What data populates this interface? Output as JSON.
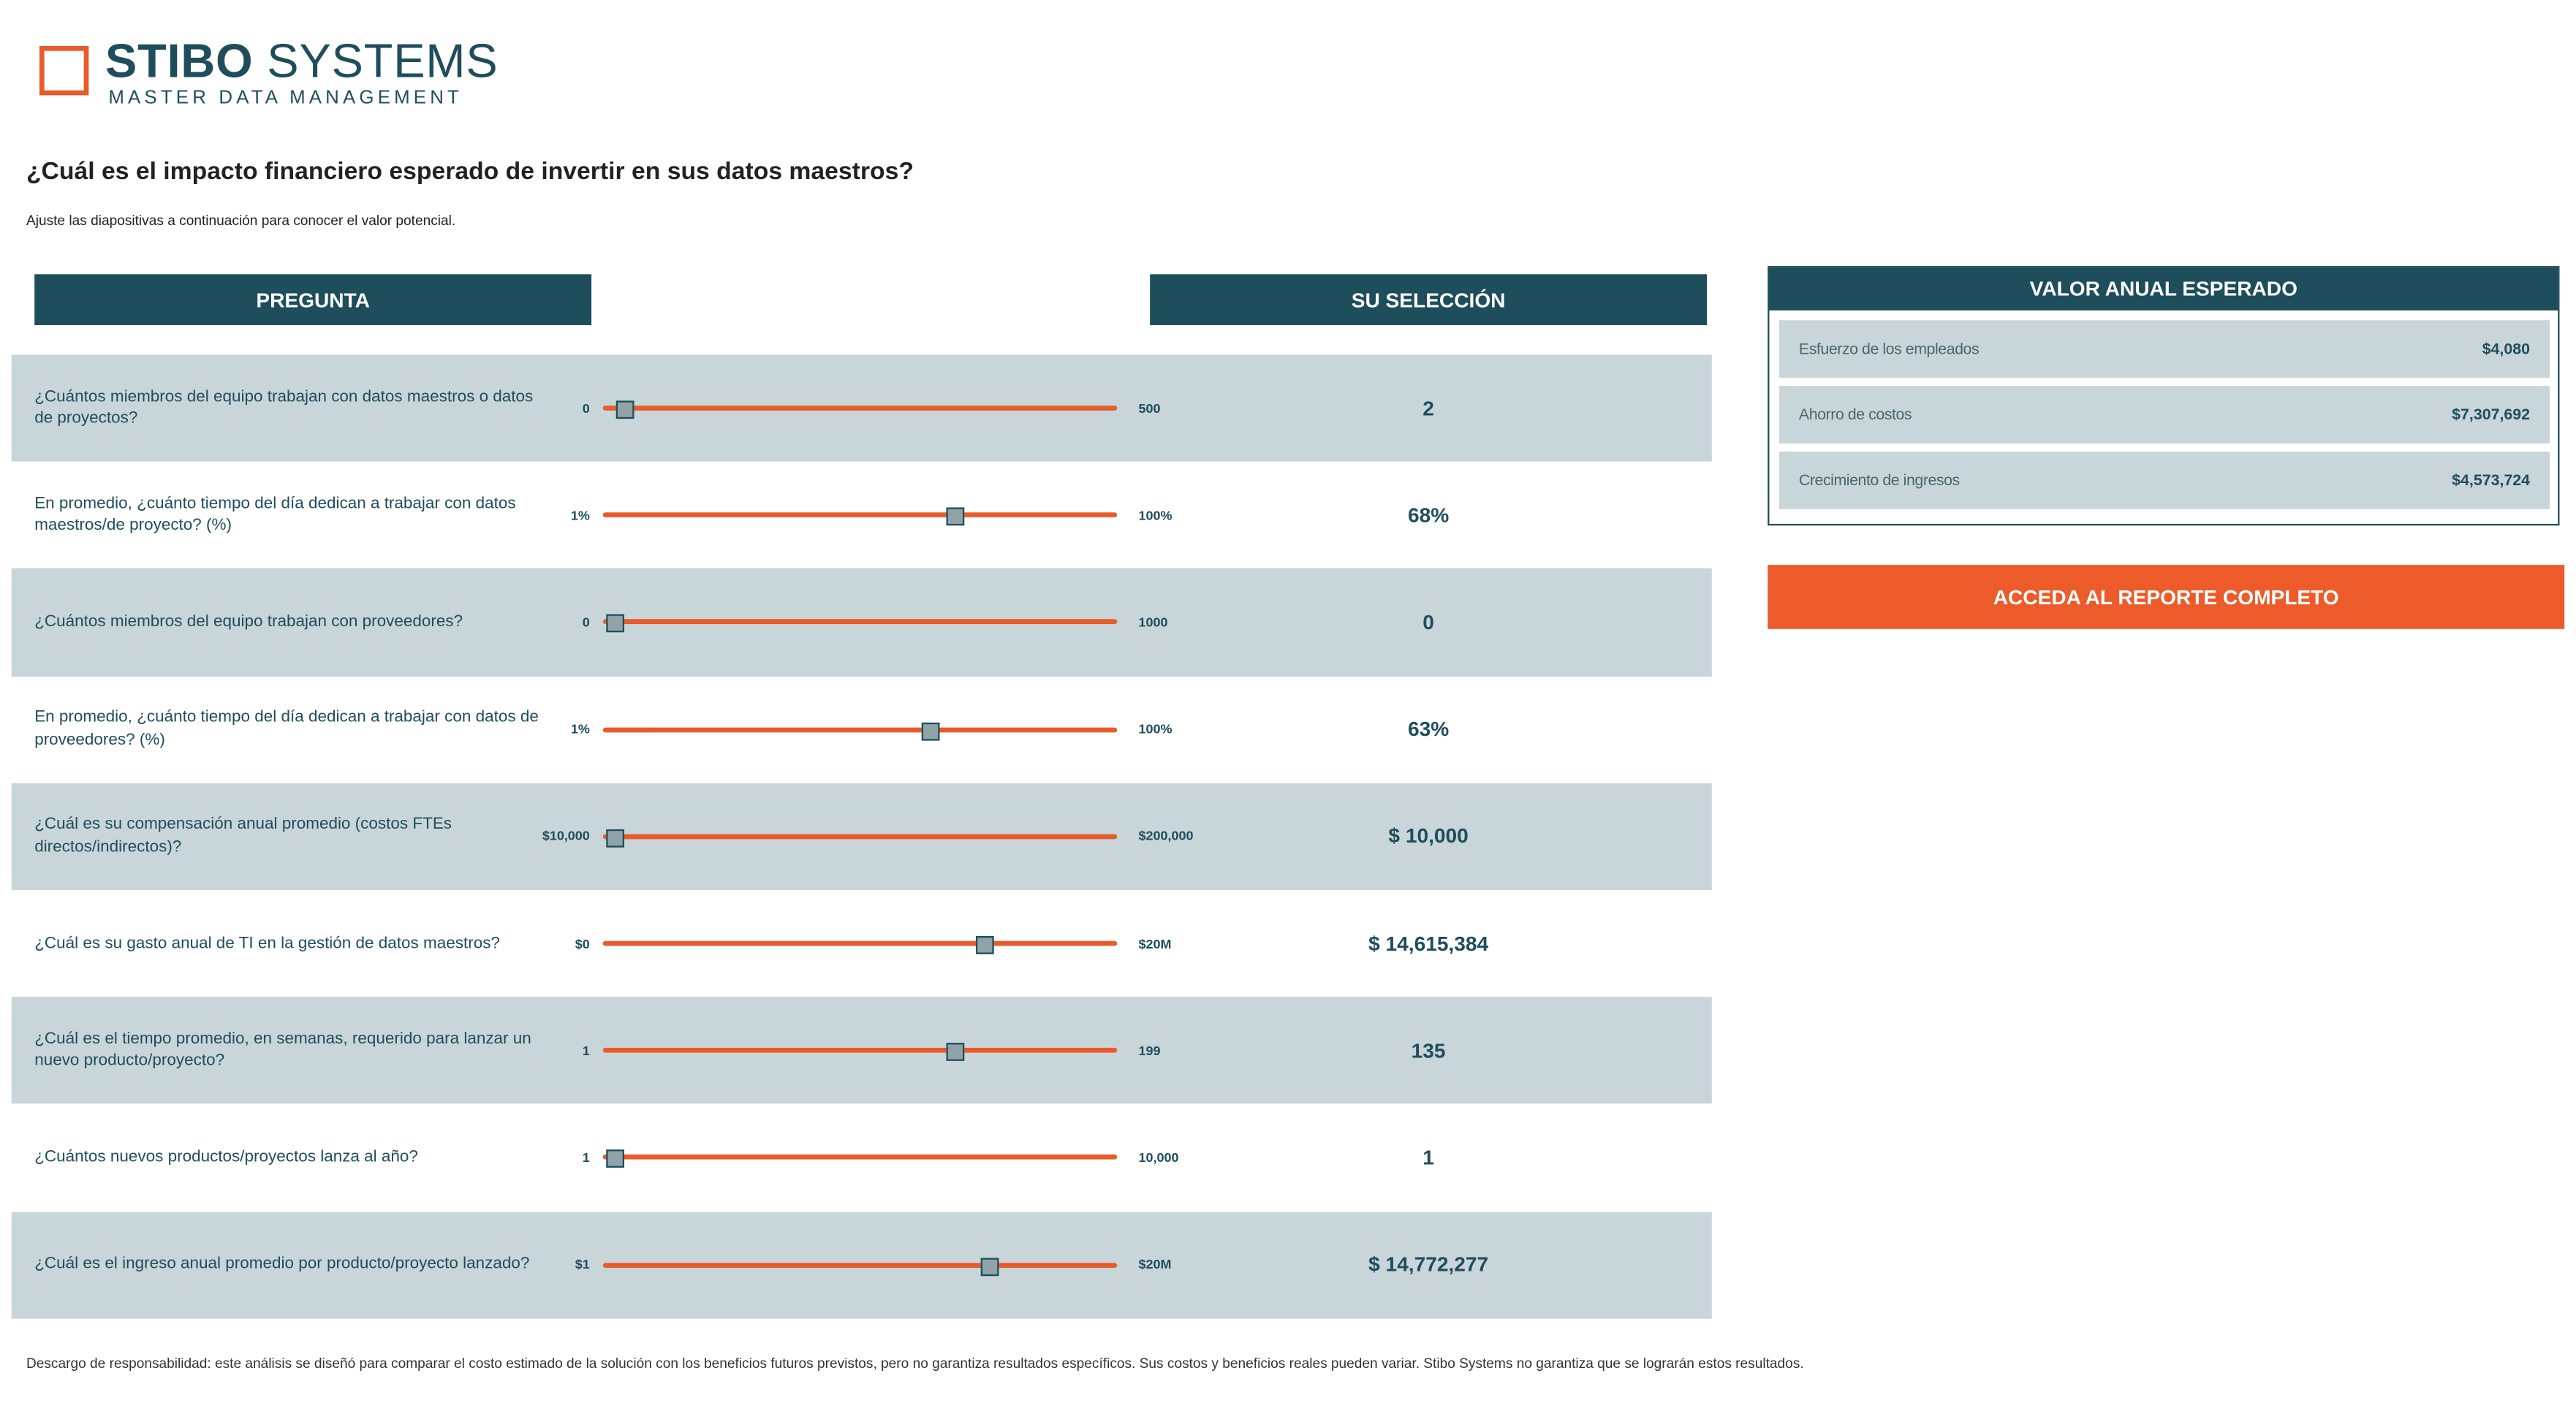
{
  "logo": {
    "brand_bold": "STIBO",
    "brand_light": "SYSTEMS",
    "tagline": "MASTER DATA MANAGEMENT"
  },
  "heading": "¿Cuál es el impacto financiero esperado de invertir en sus datos maestros?",
  "subheading": "Ajuste las diapositivas a continuación para conocer el valor potencial.",
  "table": {
    "col_question": "PREGUNTA",
    "col_selection": "SU SELECCIÓN"
  },
  "questions": [
    {
      "text": "¿Cuántos miembros del equipo trabajan con datos maestros o datos de proyectos?",
      "min": "0",
      "max": "500",
      "selection": "2",
      "level": 0.02
    },
    {
      "text": "En promedio, ¿cuánto tiempo del día dedican a trabajar con datos maestros/de proyecto? (%)",
      "min": "1%",
      "max": "100%",
      "selection": "68%",
      "level": 0.69
    },
    {
      "text": "¿Cuántos miembros del equipo trabajan con proveedores?",
      "min": "0",
      "max": "1000",
      "selection": "0",
      "level": 0.0
    },
    {
      "text": "En promedio, ¿cuánto tiempo del día dedican a trabajar con datos de proveedores? (%)",
      "min": "1%",
      "max": "100%",
      "selection": "63%",
      "level": 0.64
    },
    {
      "text": "¿Cuál es su compensación anual promedio (costos FTEs directos/indirectos)?",
      "min": "$10,000",
      "max": "$200,000",
      "selection": "$ 10,000",
      "level": 0.0
    },
    {
      "text": "¿Cuál es su gasto anual de TI en la gestión de datos maestros?",
      "min": "$0",
      "max": "$20M",
      "selection": "$ 14,615,384",
      "level": 0.75
    },
    {
      "text": "¿Cuál es el tiempo promedio, en semanas, requerido para lanzar un nuevo producto/proyecto?",
      "min": "1",
      "max": "199",
      "selection": "135",
      "level": 0.69
    },
    {
      "text": "¿Cuántos nuevos productos/proyectos lanza al año?",
      "min": "1",
      "max": "10,000",
      "selection": "1",
      "level": 0.0
    },
    {
      "text": "¿Cuál es el ingreso anual promedio por producto/proyecto lanzado?",
      "min": "$1",
      "max": "$20M",
      "selection": "$ 14,772,277",
      "level": 0.76
    }
  ],
  "summary": {
    "title": "VALOR ANUAL ESPERADO",
    "items": [
      {
        "label": "Esfuerzo de los empleados",
        "value": "$4,080"
      },
      {
        "label": "Ahorro de costos",
        "value": "$7,307,692"
      },
      {
        "label": "Crecimiento de ingresos",
        "value": "$4,573,724"
      }
    ]
  },
  "cta_label": "ACCEDA AL REPORTE COMPLETO",
  "disclaimer": "Descargo de responsabilidad: este análisis se diseñó para comparar el costo estimado de la solución con los beneficios futuros previstos, pero no garantiza resultados específicos. Sus costos y beneficios reales pueden variar. Stibo Systems no garantiza que se lograrán estos resultados.",
  "colors": {
    "accent": "#e95b2a",
    "primary": "#1e4d5c",
    "row_band": "#c8d5d9"
  }
}
